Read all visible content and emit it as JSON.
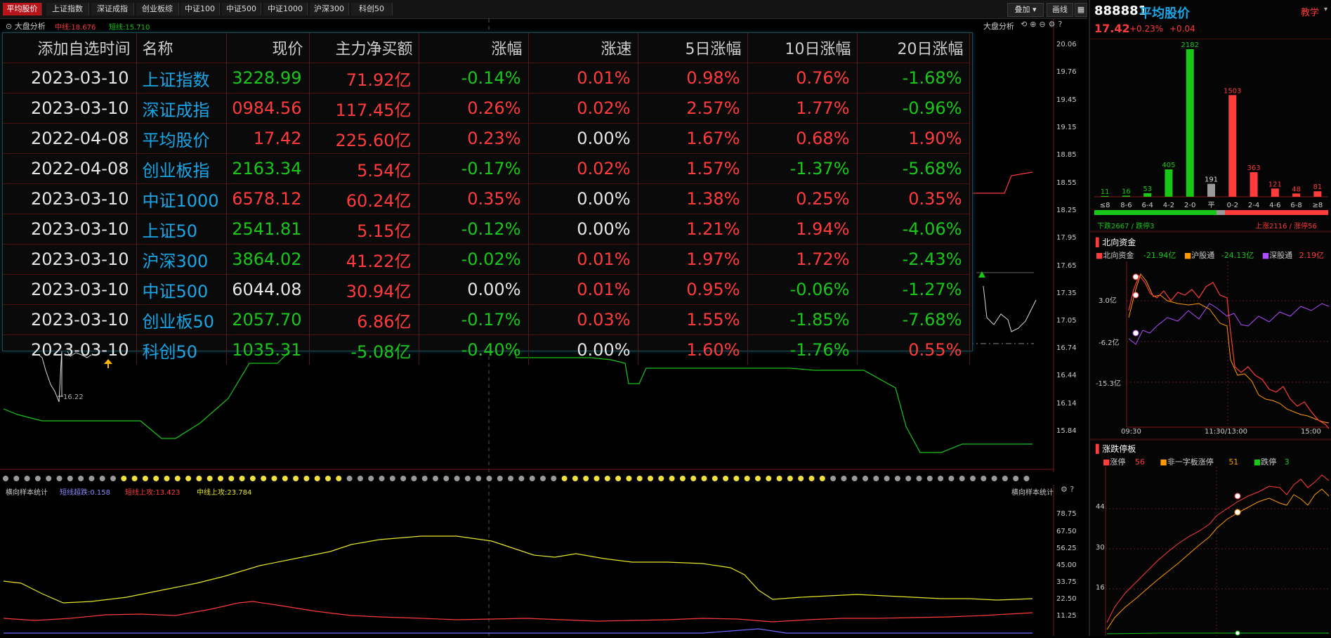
{
  "tabs": [
    {
      "label": "平均股价",
      "active": true
    },
    {
      "label": "上证指数",
      "active": false
    },
    {
      "label": "深证成指",
      "active": false
    },
    {
      "label": "创业板综",
      "active": false
    },
    {
      "label": "中证100",
      "active": false
    },
    {
      "label": "中证500",
      "active": false
    },
    {
      "label": "中证1000",
      "active": false
    },
    {
      "label": "沪深300",
      "active": false
    },
    {
      "label": "科创50",
      "active": false
    }
  ],
  "toolbar": {
    "overlay_label": "叠加",
    "draw_label": "画线"
  },
  "main_chart": {
    "title": "大盘分析",
    "mid_line": "中线:18.676",
    "short_line": "短线:15.710",
    "right_title": "大盘分析",
    "y_ticks": [
      "20.06",
      "19.76",
      "19.45",
      "19.15",
      "18.85",
      "18.55",
      "18.25",
      "17.95",
      "17.65",
      "17.35",
      "17.05",
      "16.74",
      "16.44",
      "16.14",
      "15.84"
    ],
    "low_label": "16.22"
  },
  "sub_chart": {
    "title": "横向样本统计",
    "s1": "短线超跌:0.158",
    "s2": "短线上攻:13.423",
    "s3": "中线上攻:23.784",
    "right_title": "横向样本统计",
    "y_ticks": [
      "78.75",
      "67.50",
      "56.25",
      "45.00",
      "33.75",
      "22.50",
      "11.25"
    ]
  },
  "table": {
    "headers": [
      "添加自选时间",
      "名称",
      "现价",
      "主力净买额",
      "涨幅",
      "涨速",
      "5日涨幅",
      "10日涨幅",
      "20日涨幅"
    ],
    "rows": [
      {
        "date": "2023-03-10",
        "name": "上证指数",
        "price": "3228.99",
        "pc": "dn",
        "net": "71.92亿",
        "nc": "up",
        "chg": "-0.14%",
        "cc": "dn",
        "spd": "0.01%",
        "sc": "up",
        "d5": "0.98%",
        "c5": "up",
        "d10": "0.76%",
        "c10": "up",
        "d20": "-1.68%",
        "c20": "dn"
      },
      {
        "date": "2023-03-10",
        "name": "深证成指",
        "price": "0984.56",
        "pc": "up",
        "net": "117.45亿",
        "nc": "up",
        "chg": "0.26%",
        "cc": "up",
        "spd": "0.02%",
        "sc": "up",
        "d5": "2.57%",
        "c5": "up",
        "d10": "1.77%",
        "c10": "up",
        "d20": "-0.96%",
        "c20": "dn"
      },
      {
        "date": "2022-04-08",
        "name": "平均股价",
        "price": "17.42",
        "pc": "up",
        "net": "225.60亿",
        "nc": "up",
        "chg": "0.23%",
        "cc": "up",
        "spd": "0.00%",
        "sc": "fl",
        "d5": "1.67%",
        "c5": "up",
        "d10": "0.68%",
        "c10": "up",
        "d20": "1.90%",
        "c20": "up"
      },
      {
        "date": "2022-04-08",
        "name": "创业板指",
        "price": "2163.34",
        "pc": "dn",
        "net": "5.54亿",
        "nc": "up",
        "chg": "-0.17%",
        "cc": "dn",
        "spd": "0.02%",
        "sc": "up",
        "d5": "1.57%",
        "c5": "up",
        "d10": "-1.37%",
        "c10": "dn",
        "d20": "-5.68%",
        "c20": "dn"
      },
      {
        "date": "2023-03-10",
        "name": "中证1000",
        "price": "6578.12",
        "pc": "up",
        "net": "60.24亿",
        "nc": "up",
        "chg": "0.35%",
        "cc": "up",
        "spd": "0.00%",
        "sc": "fl",
        "d5": "1.38%",
        "c5": "up",
        "d10": "0.25%",
        "c10": "up",
        "d20": "0.35%",
        "c20": "up"
      },
      {
        "date": "2023-03-10",
        "name": "上证50",
        "price": "2541.81",
        "pc": "dn",
        "net": "5.15亿",
        "nc": "up",
        "chg": "-0.12%",
        "cc": "dn",
        "spd": "0.00%",
        "sc": "fl",
        "d5": "1.21%",
        "c5": "up",
        "d10": "1.94%",
        "c10": "up",
        "d20": "-4.06%",
        "c20": "dn"
      },
      {
        "date": "2023-03-10",
        "name": "沪深300",
        "price": "3864.02",
        "pc": "dn",
        "net": "41.22亿",
        "nc": "up",
        "chg": "-0.02%",
        "cc": "dn",
        "spd": "0.01%",
        "sc": "up",
        "d5": "1.97%",
        "c5": "up",
        "d10": "1.72%",
        "c10": "up",
        "d20": "-2.43%",
        "c20": "dn"
      },
      {
        "date": "2023-03-10",
        "name": "中证500",
        "price": "6044.08",
        "pc": "fl",
        "net": "30.94亿",
        "nc": "up",
        "chg": "0.00%",
        "cc": "fl",
        "spd": "0.01%",
        "sc": "up",
        "d5": "0.95%",
        "c5": "up",
        "d10": "-0.06%",
        "c10": "dn",
        "d20": "-1.27%",
        "c20": "dn"
      },
      {
        "date": "2023-03-10",
        "name": "创业板50",
        "price": "2057.70",
        "pc": "dn",
        "net": "6.86亿",
        "nc": "up",
        "chg": "-0.17%",
        "cc": "dn",
        "spd": "0.03%",
        "sc": "up",
        "d5": "1.55%",
        "c5": "up",
        "d10": "-1.85%",
        "c10": "dn",
        "d20": "-7.68%",
        "c20": "dn"
      },
      {
        "date": "2023-03-10",
        "name": "科创50",
        "price": "1035.31",
        "pc": "dn",
        "net": "-5.08亿",
        "nc": "dn",
        "chg": "-0.40%",
        "cc": "dn",
        "spd": "0.00%",
        "sc": "fl",
        "d5": "1.60%",
        "c5": "up",
        "d10": "-1.76%",
        "c10": "dn",
        "d20": "0.55%",
        "c20": "up"
      }
    ]
  },
  "right": {
    "code": "888881",
    "name": "平均股价",
    "teach": "教学",
    "price": "17.42",
    "pct": "+0.23%",
    "chg": "+0.04",
    "dist_footer_left": "下跌2667 / 跌停3",
    "dist_footer_right": "上涨2116 / 涨停56",
    "north": {
      "title": "北向资金",
      "l1": "北向资金",
      "v1": "-21.94亿",
      "l2": "沪股通",
      "v2": "-24.13亿",
      "l3": "深股通",
      "v3": "2.19亿",
      "y_ticks": [
        "3.0亿",
        "-6.2亿",
        "-15.3亿"
      ],
      "x_ticks": [
        "09:30",
        "11:30/13:00",
        "15:00"
      ]
    },
    "limit": {
      "title": "涨跌停板",
      "l1": "涨停",
      "v1": "56",
      "l2": "非一字板涨停",
      "v2": "51",
      "l3": "跌停",
      "v3": "3",
      "y_ticks": [
        "44",
        "30",
        "16"
      ]
    }
  },
  "chart_data": {
    "type": "bar",
    "title": "",
    "categories": [
      "≤8",
      "8-6",
      "6-4",
      "4-2",
      "2-0",
      "平",
      "0-2",
      "2-4",
      "4-6",
      "6-8",
      "≥8"
    ],
    "values": [
      11,
      16,
      53,
      405,
      2182,
      191,
      1503,
      363,
      121,
      48,
      81
    ],
    "colors": [
      "#19c719",
      "#19c719",
      "#19c719",
      "#19c719",
      "#19c719",
      "#999999",
      "#ff3b3b",
      "#ff3b3b",
      "#ff3b3b",
      "#ff3b3b",
      "#ff3b3b"
    ]
  }
}
